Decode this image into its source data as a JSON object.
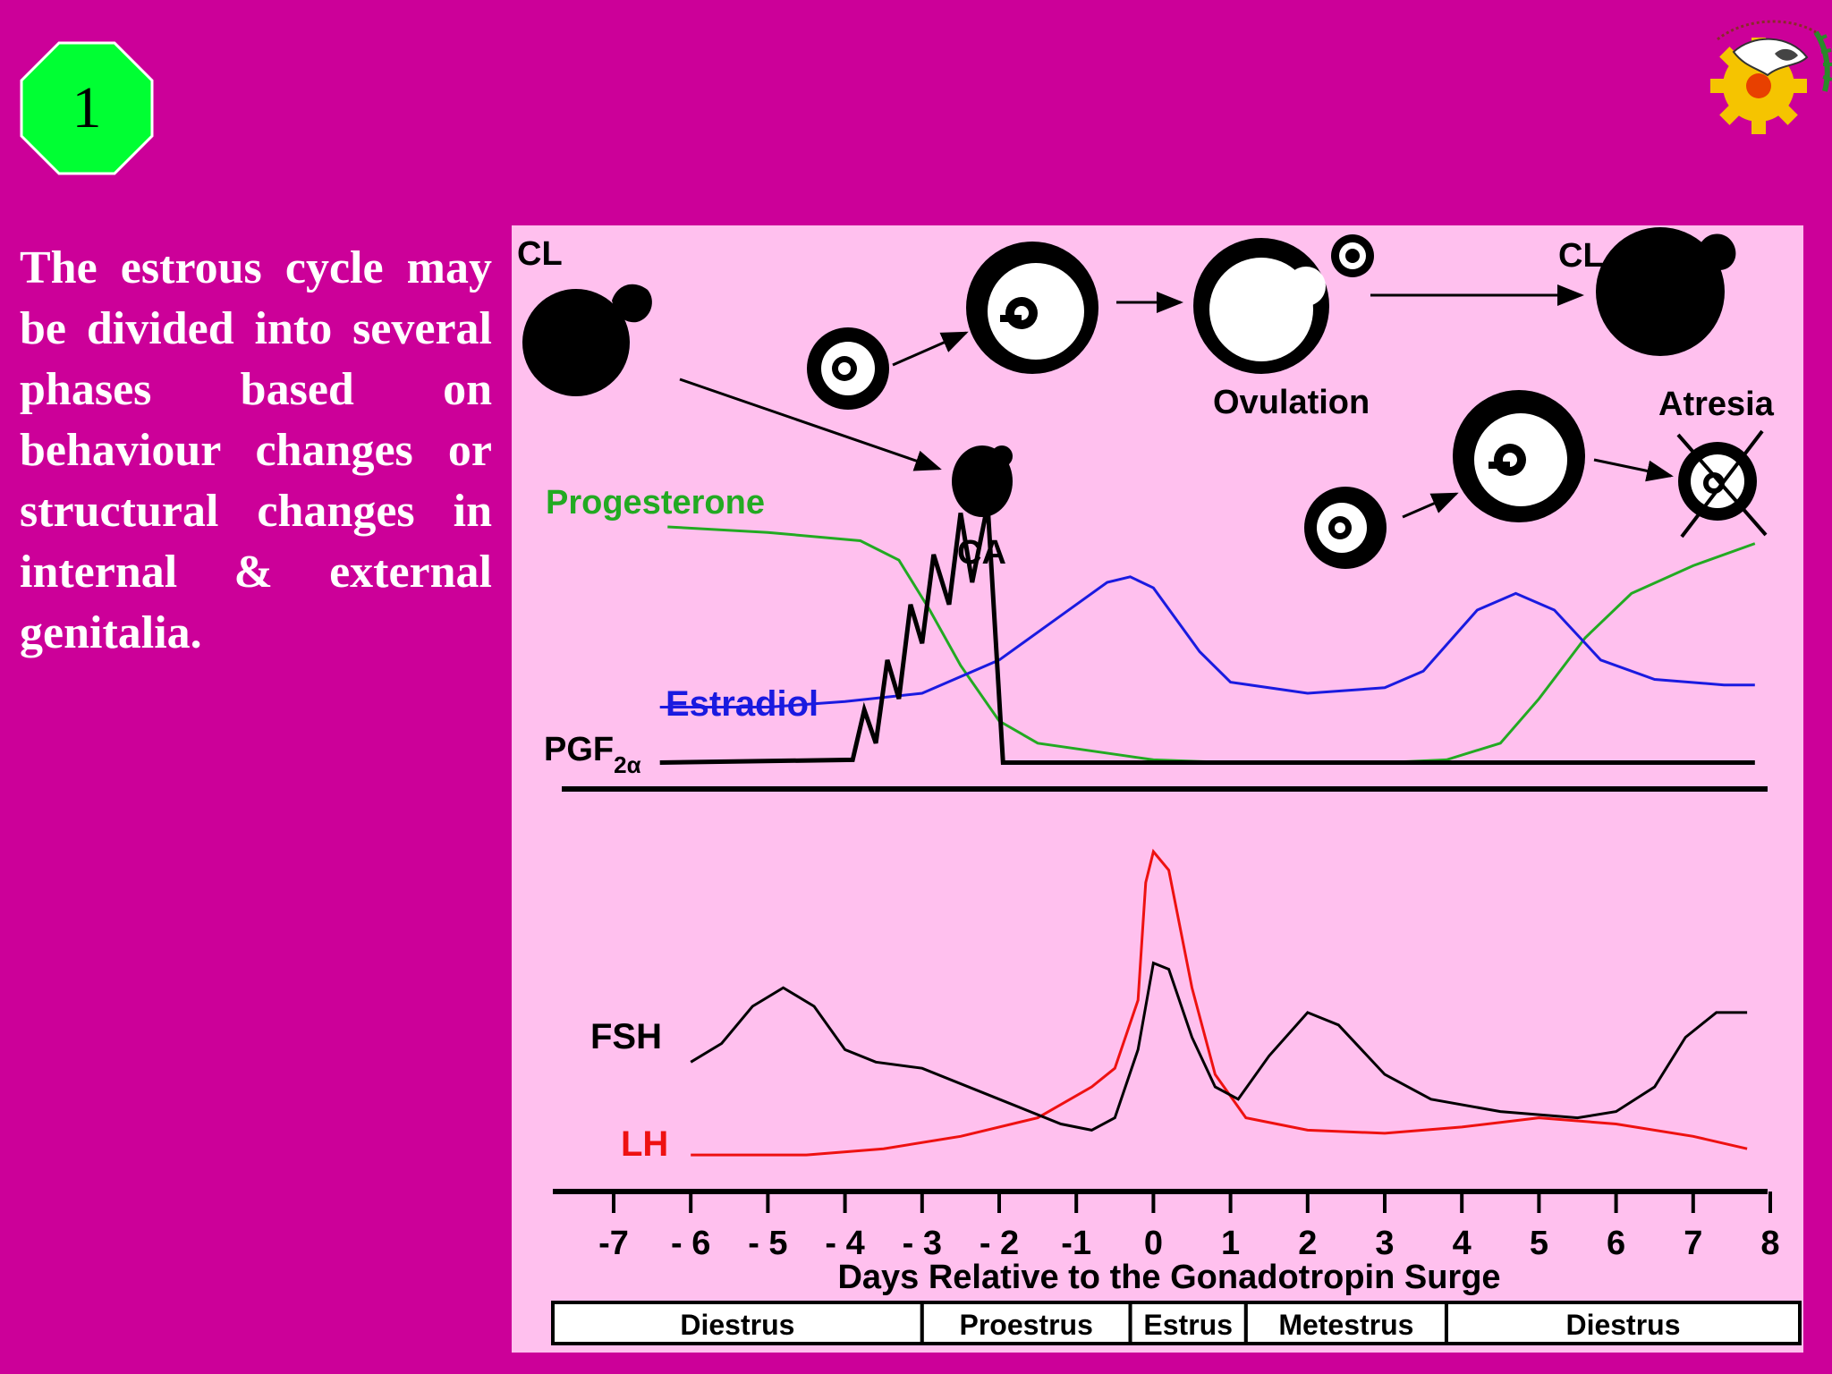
{
  "slide": {
    "number": "1"
  },
  "body_text": "The estrous cycle may be divided into several phases based on behaviour changes or structural changes in internal & external genitalia.",
  "colors": {
    "background": "#cc0099",
    "panel": "#ffc0ee",
    "progesterone": "#22aa22",
    "estradiol": "#1a1ae0",
    "lh": "#ee1111",
    "fsh": "#000000",
    "pgf": "#000000",
    "badge": "#00ff33"
  },
  "icons": [
    "corpus-luteum-icon",
    "follicle-icon",
    "ovulation-icon",
    "atresia-icon",
    "institution-logo-icon"
  ],
  "figure": {
    "labels": {
      "cl_left": "CL",
      "cl_right": "CL",
      "ca": "CA",
      "ovulation": "Ovulation",
      "atresia": "Atresia",
      "progesterone": "Progesterone",
      "estradiol": "Estradiol",
      "pgf": "PGF",
      "pgf_sub": "2α",
      "fsh": "FSH",
      "lh": "LH"
    },
    "xlabel": "Days Relative to the Gonadotropin Surge",
    "ticks": [
      "-7",
      "- 6",
      "- 5",
      "- 4",
      "- 3",
      "- 2",
      "-1",
      "0",
      "1",
      "2",
      "3",
      "4",
      "5",
      "6",
      "7",
      "8"
    ],
    "phases": [
      "Diestrus",
      "Proestrus",
      "Estrus",
      "Metestrus",
      "Diestrus"
    ]
  },
  "chart_data": {
    "type": "line",
    "xlabel": "Days Relative to the Gonadotropin Surge",
    "x_ticks": [
      -7,
      -6,
      -5,
      -4,
      -3,
      -2,
      -1,
      0,
      1,
      2,
      3,
      4,
      5,
      6,
      7,
      8
    ],
    "xlim": [
      -7,
      8
    ],
    "phases": [
      {
        "name": "Diestrus",
        "from": -7.8,
        "to": -3
      },
      {
        "name": "Proestrus",
        "from": -3,
        "to": -0.3
      },
      {
        "name": "Estrus",
        "from": -0.3,
        "to": 1.2
      },
      {
        "name": "Metestrus",
        "from": 1.2,
        "to": 3.8
      },
      {
        "name": "Diestrus",
        "from": 3.8,
        "to": 8.5
      }
    ],
    "panels": [
      {
        "name": "upper",
        "series": [
          {
            "name": "Progesterone",
            "points": [
              [
                -6.3,
                0.9
              ],
              [
                -5,
                0.88
              ],
              [
                -3.8,
                0.85
              ],
              [
                -3.3,
                0.78
              ],
              [
                -2.9,
                0.6
              ],
              [
                -2.5,
                0.4
              ],
              [
                -2,
                0.2
              ],
              [
                -1.5,
                0.12
              ],
              [
                -0.5,
                0.08
              ],
              [
                0,
                0.06
              ],
              [
                1,
                0.05
              ],
              [
                3,
                0.05
              ],
              [
                3.8,
                0.06
              ],
              [
                4.5,
                0.12
              ],
              [
                5,
                0.28
              ],
              [
                5.6,
                0.5
              ],
              [
                6.2,
                0.66
              ],
              [
                7,
                0.76
              ],
              [
                7.8,
                0.84
              ]
            ]
          },
          {
            "name": "Estradiol",
            "points": [
              [
                -6.4,
                0.25
              ],
              [
                -5,
                0.25
              ],
              [
                -4,
                0.27
              ],
              [
                -3,
                0.3
              ],
              [
                -2,
                0.42
              ],
              [
                -1.2,
                0.58
              ],
              [
                -0.6,
                0.7
              ],
              [
                -0.3,
                0.72
              ],
              [
                0,
                0.68
              ],
              [
                0.6,
                0.45
              ],
              [
                1,
                0.34
              ],
              [
                2,
                0.3
              ],
              [
                3,
                0.32
              ],
              [
                3.5,
                0.38
              ],
              [
                4.2,
                0.6
              ],
              [
                4.7,
                0.66
              ],
              [
                5.2,
                0.6
              ],
              [
                5.8,
                0.42
              ],
              [
                6.5,
                0.35
              ],
              [
                7.4,
                0.33
              ],
              [
                7.8,
                0.33
              ]
            ]
          },
          {
            "name": "PGF2α",
            "points": [
              [
                -6.4,
                0.05
              ],
              [
                -3.9,
                0.06
              ],
              [
                -3.75,
                0.24
              ],
              [
                -3.6,
                0.12
              ],
              [
                -3.45,
                0.42
              ],
              [
                -3.3,
                0.28
              ],
              [
                -3.15,
                0.62
              ],
              [
                -3.0,
                0.48
              ],
              [
                -2.85,
                0.8
              ],
              [
                -2.65,
                0.62
              ],
              [
                -2.5,
                0.95
              ],
              [
                -2.35,
                0.7
              ],
              [
                -2.15,
                0.98
              ],
              [
                -1.95,
                0.05
              ],
              [
                7.8,
                0.05
              ]
            ]
          }
        ]
      },
      {
        "name": "lower",
        "series": [
          {
            "name": "FSH",
            "points": [
              [
                -6,
                0.32
              ],
              [
                -5.6,
                0.38
              ],
              [
                -5.2,
                0.5
              ],
              [
                -4.8,
                0.56
              ],
              [
                -4.4,
                0.5
              ],
              [
                -4,
                0.36
              ],
              [
                -3.6,
                0.32
              ],
              [
                -3,
                0.3
              ],
              [
                -2,
                0.2
              ],
              [
                -1.2,
                0.12
              ],
              [
                -0.8,
                0.1
              ],
              [
                -0.5,
                0.14
              ],
              [
                -0.2,
                0.36
              ],
              [
                0,
                0.64
              ],
              [
                0.2,
                0.62
              ],
              [
                0.5,
                0.4
              ],
              [
                0.8,
                0.24
              ],
              [
                1.1,
                0.2
              ],
              [
                1.5,
                0.34
              ],
              [
                2,
                0.48
              ],
              [
                2.4,
                0.44
              ],
              [
                3,
                0.28
              ],
              [
                3.6,
                0.2
              ],
              [
                4.5,
                0.16
              ],
              [
                5.5,
                0.14
              ],
              [
                6,
                0.16
              ],
              [
                6.5,
                0.24
              ],
              [
                6.9,
                0.4
              ],
              [
                7.3,
                0.48
              ],
              [
                7.7,
                0.48
              ]
            ]
          },
          {
            "name": "LH",
            "points": [
              [
                -6,
                0.02
              ],
              [
                -4.5,
                0.02
              ],
              [
                -3.5,
                0.04
              ],
              [
                -2.5,
                0.08
              ],
              [
                -1.5,
                0.14
              ],
              [
                -0.8,
                0.24
              ],
              [
                -0.5,
                0.3
              ],
              [
                -0.2,
                0.52
              ],
              [
                -0.1,
                0.9
              ],
              [
                0,
                1
              ],
              [
                0.2,
                0.94
              ],
              [
                0.5,
                0.56
              ],
              [
                0.8,
                0.28
              ],
              [
                1.2,
                0.14
              ],
              [
                2,
                0.1
              ],
              [
                3,
                0.09
              ],
              [
                4,
                0.11
              ],
              [
                5,
                0.14
              ],
              [
                6,
                0.12
              ],
              [
                7,
                0.08
              ],
              [
                7.7,
                0.04
              ]
            ]
          }
        ]
      }
    ]
  }
}
